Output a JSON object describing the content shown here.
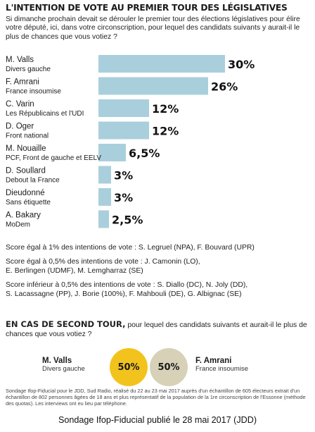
{
  "title": "L'INTENTION DE VOTE AU PREMIER TOUR DES LÉGISLATIVES",
  "question": "Si dimanche prochain devait se dérouler le premier tour des élections législatives pour élire votre député, ici, dans votre circonscription, pour lequel des candidats suivants y aurait-il le plus de chances que vous votiez ?",
  "colors": {
    "bar": "#a9cfdc",
    "yellow": "#f3c31d",
    "beige": "#d6d1b7"
  },
  "chart_data": {
    "type": "bar",
    "orientation": "horizontal",
    "categories": [
      {
        "name": "M. Valls",
        "party": "Divers gauche"
      },
      {
        "name": "F. Amrani",
        "party": "France insoumise"
      },
      {
        "name": "C. Varin",
        "party": "Les Républicains et l'UDI"
      },
      {
        "name": "D. Oger",
        "party": "Front national"
      },
      {
        "name": "M. Nouaille",
        "party": "PCF, Front de gauche et EELV"
      },
      {
        "name": "D. Soullard",
        "party": "Debout la France"
      },
      {
        "name": "Dieudonné",
        "party": "Sans étiquette"
      },
      {
        "name": "A. Bakary",
        "party": "MoDem"
      }
    ],
    "values": [
      30,
      26,
      12,
      12,
      6.5,
      3,
      3,
      2.5
    ],
    "value_labels": [
      "30%",
      "26%",
      "12%",
      "12%",
      "6,5%",
      "3%",
      "3%",
      "2,5%"
    ],
    "xlim": [
      0,
      30
    ],
    "title": "L'INTENTION DE VOTE AU PREMIER TOUR DES LÉGISLATIVES"
  },
  "notes": {
    "line1": "Score égal à 1% des intentions de vote : S. Legruel (NPA), F. Bouvard (UPR)",
    "line2a": "Score égal à 0,5% des intentions de vote : J. Camonin (LO),",
    "line2b": "E. Berlingen (UDMF), M. Lemgharraz (SE)",
    "line3a": "Score inférieur à 0,5% des intentions de vote : S. Diallo (DC), N. Joly (DD),",
    "line3b": "S. Lacassagne (PP), J. Borie (100%), F. Mahbouli (DE), G. Albignac (SE)"
  },
  "second_round": {
    "heading": "EN CAS DE SECOND TOUR,",
    "question": "pour lequel des candidats suivants et aurait-il le plus de chances que vous votiez ?",
    "left": {
      "name": "M. Valls",
      "party": "Divers gauche",
      "value": "50%"
    },
    "right": {
      "name": "F. Amrani",
      "party": "France insoumise",
      "value": "50%"
    }
  },
  "methodology": "Sondage Ifop-Fiducial pour le JDD, Sud Radio, réalisé du 22 au 23 mai 2017 auprès d'un échantillon de 605 électeurs extrait d'un échantillon de 802 personnes âgées de 18 ans et plus représentatif de la population de la 1re circonscription de l'Essonne (méthode des quotas). Les interviews ont eu lieu par téléphone.",
  "caption": "Sondage Ifop-Fiducial publié le 28 mai 2017 (JDD)"
}
